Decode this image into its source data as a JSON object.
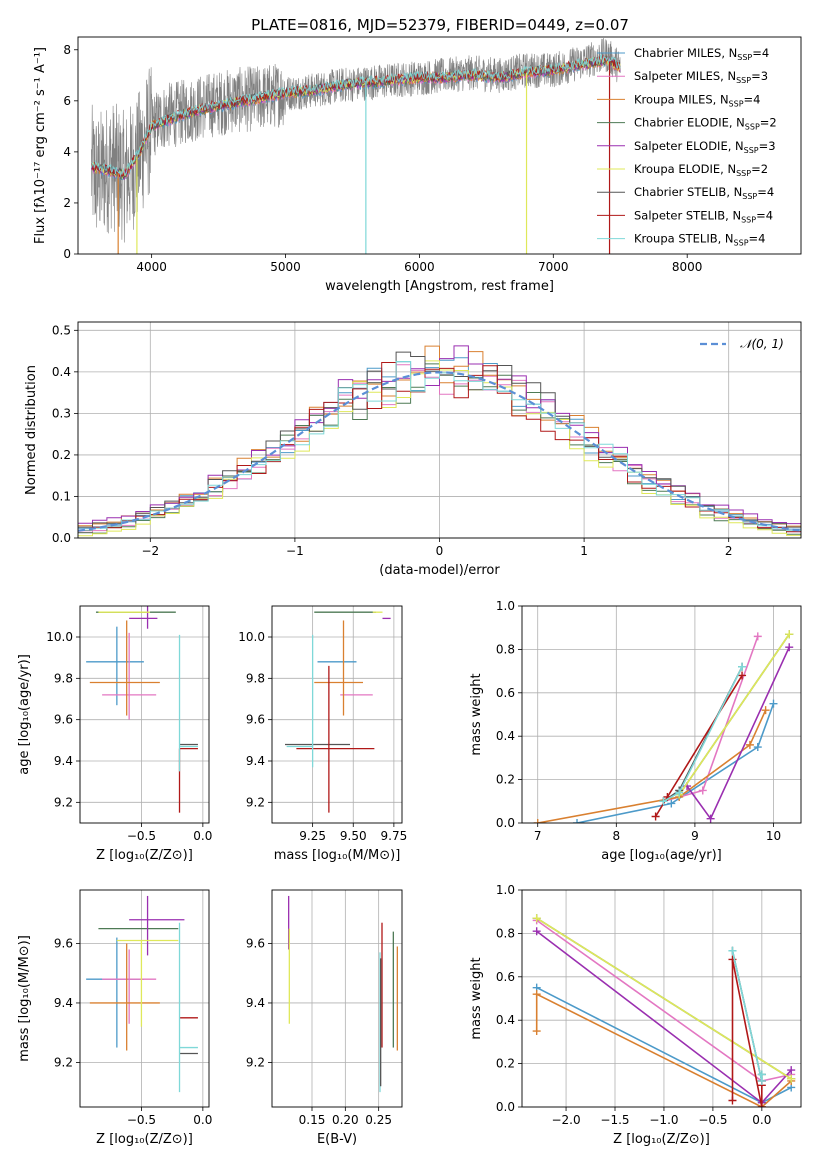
{
  "figure": {
    "title": "PLATE=0816, MJD=52379, FIBERID=0449, z=0.07"
  },
  "series_colors": {
    "Chabrier MILES": "#4c9ac9",
    "Salpeter MILES": "#e377c2",
    "Kroupa MILES": "#d98030",
    "Chabrier ELODIE": "#4e7a55",
    "Salpeter ELODIE": "#9a2fb0",
    "Kroupa ELODIE": "#dfe85a",
    "Chabrier STELIB": "#555555",
    "Salpeter STELIB": "#b01818",
    "Kroupa STELIB": "#7fd8d8",
    "data": "#808080",
    "normal": "#5b8fd6"
  },
  "chart_data": [
    {
      "id": "spectrum",
      "type": "line",
      "title": "PLATE=0816, MJD=52379, FIBERID=0449, z=0.07",
      "xlabel": "wavelength [Angstrom, rest frame]",
      "ylabel": "Flux [f_λ 10^-17 erg cm^-2 s^-1 A^-1]",
      "xlim": [
        3450,
        8850
      ],
      "ylim": [
        0,
        8.5
      ],
      "xticks": [
        4000,
        5000,
        6000,
        7000,
        8000
      ],
      "yticks": [
        0,
        2,
        4,
        6,
        8
      ],
      "legend": [
        "Chabrier MILES, N_SSP=4",
        "Salpeter MILES, N_SSP=3",
        "Kroupa MILES, N_SSP=4",
        "Chabrier ELODIE, N_SSP=2",
        "Salpeter ELODIE, N_SSP=3",
        "Kroupa ELODIE, N_SSP=2",
        "Chabrier STELIB, N_SSP=4",
        "Salpeter STELIB, N_SSP=4",
        "Kroupa STELIB, N_SSP=4"
      ],
      "legend_position": "right",
      "data_x": [
        3550,
        3600,
        3700,
        3800,
        3900,
        4000,
        4100,
        4200,
        4400,
        4600,
        4800,
        5000,
        5200,
        5400,
        5600,
        5800,
        6000,
        6200,
        6400,
        6600,
        6800,
        7000,
        7200,
        7400,
        7500
      ],
      "data_y": [
        3.3,
        3.0,
        3.5,
        3.0,
        3.8,
        5.0,
        5.4,
        5.5,
        5.8,
        6.0,
        6.1,
        6.3,
        6.4,
        6.6,
        6.7,
        6.8,
        6.9,
        7.0,
        7.1,
        7.0,
        7.2,
        7.2,
        7.5,
        7.8,
        7.3
      ],
      "model_x": [
        3550,
        3650,
        3800,
        3900,
        4000,
        4200,
        4400,
        4600,
        4800,
        5000,
        5200,
        5400,
        5600,
        5800,
        6000,
        6200,
        6400,
        6600,
        6800,
        7000,
        7200,
        7400,
        7500
      ],
      "model_y": [
        3.4,
        3.3,
        3.1,
        3.9,
        5.0,
        5.4,
        5.7,
        5.9,
        6.1,
        6.3,
        6.4,
        6.6,
        6.7,
        6.8,
        6.9,
        6.9,
        7.0,
        6.9,
        7.1,
        7.2,
        7.4,
        7.6,
        7.3
      ],
      "model_spikes": [
        {
          "x": 5600,
          "y": 0,
          "series": "Kroupa STELIB"
        },
        {
          "x": 6800,
          "y": 0,
          "series": "Kroupa ELODIE"
        },
        {
          "x": 7420,
          "y": 0,
          "series": "Salpeter STELIB"
        },
        {
          "x": 3750,
          "y": 0,
          "series": "Kroupa MILES"
        },
        {
          "x": 3890,
          "y": 0,
          "series": "Kroupa ELODIE"
        }
      ]
    },
    {
      "id": "residuals",
      "type": "line",
      "xlabel": "(data-model)/error",
      "ylabel": "Normed distribution",
      "xlim": [
        -2.5,
        2.5
      ],
      "ylim": [
        0,
        0.52
      ],
      "xticks": [
        -2,
        -1,
        0,
        1,
        2
      ],
      "yticks": [
        0.0,
        0.1,
        0.2,
        0.3,
        0.4,
        0.5
      ],
      "legend": [
        "N(0,1)"
      ],
      "legend_position": "top-right",
      "grid": true,
      "bin_width": 0.1,
      "histograms": [
        {
          "series": "Chabrier MILES",
          "offset": 0.004
        },
        {
          "series": "Salpeter MILES",
          "offset": -0.006
        },
        {
          "series": "Kroupa MILES",
          "offset": 0.01
        },
        {
          "series": "Chabrier ELODIE",
          "offset": -0.01
        },
        {
          "series": "Salpeter ELODIE",
          "offset": 0.015
        },
        {
          "series": "Kroupa ELODIE",
          "offset": -0.014
        },
        {
          "series": "Chabrier STELIB",
          "offset": 0.008
        },
        {
          "series": "Salpeter STELIB",
          "offset": -0.003
        },
        {
          "series": "Kroupa STELIB",
          "offset": 0.0
        }
      ]
    },
    {
      "id": "age_vs_Z",
      "type": "scatter",
      "xlabel": "Z [log10(Z/Z_sun)]",
      "ylabel": "age [log10(age/yr)]",
      "xlim": [
        -1.0,
        0.05
      ],
      "ylim": [
        9.1,
        10.15
      ],
      "xticks": [
        -0.5,
        0.0
      ],
      "xtick_labels": [
        "−0.5",
        "0.0"
      ],
      "extra_xticks": [
        -1.0
      ],
      "yticks": [
        9.2,
        9.4,
        9.6,
        9.8,
        10.0
      ],
      "grid": true,
      "points": [
        {
          "series": "Chabrier MILES",
          "x": -0.7,
          "y": 9.88,
          "xerr": [
            0.25,
            0.22
          ],
          "yerr": [
            0.21,
            0.17
          ]
        },
        {
          "series": "Salpeter MILES",
          "x": -0.6,
          "y": 9.72,
          "xerr": [
            0.22,
            0.22
          ],
          "yerr": [
            0.12,
            0.3
          ]
        },
        {
          "series": "Kroupa MILES",
          "x": -0.62,
          "y": 9.78,
          "xerr": [
            0.3,
            0.27
          ],
          "yerr": [
            0.16,
            0.3
          ]
        },
        {
          "series": "Chabrier ELODIE",
          "x": -0.62,
          "y": 10.12,
          "xerr": [
            0.25,
            0.4
          ],
          "yerr": [
            0.0,
            0.0
          ]
        },
        {
          "series": "Salpeter ELODIE",
          "x": -0.45,
          "y": 10.09,
          "xerr": [
            0.15,
            0.08
          ],
          "yerr": [
            0.05,
            0.2
          ]
        },
        {
          "series": "Kroupa ELODIE",
          "x": -0.63,
          "y": 10.12,
          "xerr": [
            0.22,
            0.2
          ],
          "yerr": [
            0.0,
            0.0
          ]
        },
        {
          "series": "Chabrier STELIB",
          "x": -0.19,
          "y": 9.48,
          "xerr": [
            0.0,
            0.15
          ],
          "yerr": [
            0.0,
            0.0
          ]
        },
        {
          "series": "Salpeter STELIB",
          "x": -0.19,
          "y": 9.46,
          "xerr": [
            0.0,
            0.15
          ],
          "yerr": [
            0.31,
            0.0
          ]
        },
        {
          "series": "Kroupa STELIB",
          "x": -0.19,
          "y": 9.47,
          "xerr": [
            0.0,
            0.15
          ],
          "yerr": [
            0.12,
            0.54
          ]
        }
      ]
    },
    {
      "id": "age_vs_mass",
      "type": "scatter",
      "xlabel": "mass [log10(M/M_sun)]",
      "ylabel": "",
      "xlim": [
        9.0,
        9.8
      ],
      "ylim": [
        9.1,
        10.15
      ],
      "xticks": [
        9.25,
        9.5,
        9.75
      ],
      "yticks": [
        9.2,
        9.4,
        9.6,
        9.8,
        10.0
      ],
      "grid": true,
      "points": [
        {
          "series": "Chabrier MILES",
          "x": 9.4,
          "y": 9.88,
          "xerr": [
            0.12,
            0.12
          ],
          "yerr": [
            0.0,
            0.0
          ]
        },
        {
          "series": "Salpeter MILES",
          "x": 9.52,
          "y": 9.72,
          "xerr": [
            0.1,
            0.1
          ],
          "yerr": [
            0.0,
            0.0
          ]
        },
        {
          "series": "Kroupa MILES",
          "x": 9.44,
          "y": 9.78,
          "xerr": [
            0.18,
            0.12
          ],
          "yerr": [
            0.16,
            0.3
          ]
        },
        {
          "series": "Chabrier ELODIE",
          "x": 9.44,
          "y": 10.12,
          "xerr": [
            0.18,
            0.2
          ],
          "yerr": [
            0.0,
            0.0
          ]
        },
        {
          "series": "Salpeter ELODIE",
          "x": 9.68,
          "y": 10.09,
          "xerr": [
            0.0,
            0.05
          ],
          "yerr": [
            0.0,
            0.0
          ]
        },
        {
          "series": "Kroupa ELODIE",
          "x": 9.62,
          "y": 10.12,
          "xerr": [
            0.0,
            0.06
          ],
          "yerr": [
            0.0,
            0.0
          ]
        },
        {
          "series": "Chabrier STELIB",
          "x": 9.28,
          "y": 9.48,
          "xerr": [
            0.2,
            0.2
          ],
          "yerr": [
            0.0,
            0.0
          ]
        },
        {
          "series": "Salpeter STELIB",
          "x": 9.35,
          "y": 9.46,
          "xerr": [
            0.2,
            0.28
          ],
          "yerr": [
            0.31,
            0.4
          ]
        },
        {
          "series": "Kroupa STELIB",
          "x": 9.25,
          "y": 9.47,
          "xerr": [
            0.16,
            0.0
          ],
          "yerr": [
            0.1,
            0.54
          ]
        }
      ]
    },
    {
      "id": "massweight_vs_age",
      "type": "line",
      "xlabel": "age [log10(age/yr)]",
      "ylabel": "mass weight",
      "xlim": [
        6.8,
        10.35
      ],
      "ylim": [
        0,
        1.0
      ],
      "xticks": [
        7,
        8,
        9,
        10
      ],
      "yticks": [
        0.0,
        0.2,
        0.4,
        0.6,
        0.8,
        1.0
      ],
      "grid": true,
      "series": [
        {
          "series": "Chabrier MILES",
          "x": [
            7.5,
            8.7,
            9.8,
            10.0
          ],
          "y": [
            0.0,
            0.09,
            0.35,
            0.55
          ]
        },
        {
          "series": "Salpeter MILES",
          "x": [
            8.6,
            9.1,
            9.8
          ],
          "y": [
            0.1,
            0.15,
            0.86
          ]
        },
        {
          "series": "Kroupa MILES",
          "x": [
            7.0,
            8.8,
            9.7,
            9.9
          ],
          "y": [
            0.0,
            0.12,
            0.36,
            0.52
          ]
        },
        {
          "series": "Chabrier ELODIE",
          "x": [
            8.8,
            10.2
          ],
          "y": [
            0.13,
            0.87
          ]
        },
        {
          "series": "Salpeter ELODIE",
          "x": [
            8.9,
            9.2,
            10.2
          ],
          "y": [
            0.17,
            0.02,
            0.81
          ]
        },
        {
          "series": "Kroupa ELODIE",
          "x": [
            8.8,
            10.2
          ],
          "y": [
            0.13,
            0.87
          ]
        },
        {
          "series": "Chabrier STELIB",
          "x": [
            8.6,
            8.8,
            9.6
          ],
          "y": [
            0.1,
            0.15,
            0.72
          ]
        },
        {
          "series": "Salpeter STELIB",
          "x": [
            8.5,
            8.65,
            9.6
          ],
          "y": [
            0.03,
            0.12,
            0.68
          ]
        },
        {
          "series": "Kroupa STELIB",
          "x": [
            8.6,
            8.8,
            9.6
          ],
          "y": [
            0.1,
            0.14,
            0.72
          ]
        }
      ]
    },
    {
      "id": "mass_vs_Z",
      "type": "scatter",
      "xlabel": "Z [log10(Z/Z_sun)]",
      "ylabel": "mass [log10(M/M_sun)]",
      "xlim": [
        -1.0,
        0.05
      ],
      "ylim": [
        9.05,
        9.78
      ],
      "xticks": [
        -0.5,
        0.0
      ],
      "yticks": [
        9.2,
        9.4,
        9.6
      ],
      "grid": true,
      "points": [
        {
          "series": "Chabrier MILES",
          "x": -0.7,
          "y": 9.48,
          "xerr": [
            0.25,
            0.22
          ],
          "yerr": [
            0.23,
            0.14
          ]
        },
        {
          "series": "Salpeter MILES",
          "x": -0.6,
          "y": 9.48,
          "xerr": [
            0.22,
            0.22
          ],
          "yerr": [
            0.15,
            0.1
          ]
        },
        {
          "series": "Kroupa MILES",
          "x": -0.62,
          "y": 9.4,
          "xerr": [
            0.3,
            0.27
          ],
          "yerr": [
            0.16,
            0.2
          ]
        },
        {
          "series": "Chabrier ELODIE",
          "x": -0.55,
          "y": 9.65,
          "xerr": [
            0.3,
            0.35
          ],
          "yerr": [
            0.0,
            0.0
          ]
        },
        {
          "series": "Salpeter ELODIE",
          "x": -0.45,
          "y": 9.68,
          "xerr": [
            0.15,
            0.3
          ],
          "yerr": [
            0.12,
            0.08
          ]
        },
        {
          "series": "Kroupa ELODIE",
          "x": -0.5,
          "y": 9.61,
          "xerr": [
            0.2,
            0.3
          ],
          "yerr": [
            0.29,
            0.0
          ]
        },
        {
          "series": "Chabrier STELIB",
          "x": -0.19,
          "y": 9.23,
          "xerr": [
            0.0,
            0.15
          ],
          "yerr": [
            0.0,
            0.0
          ]
        },
        {
          "series": "Salpeter STELIB",
          "x": -0.19,
          "y": 9.35,
          "xerr": [
            0.0,
            0.15
          ],
          "yerr": [
            0.0,
            0.0
          ]
        },
        {
          "series": "Kroupa STELIB",
          "x": -0.19,
          "y": 9.25,
          "xerr": [
            0.0,
            0.15
          ],
          "yerr": [
            0.15,
            0.42
          ]
        }
      ]
    },
    {
      "id": "mass_vs_ebv",
      "type": "scatter",
      "xlabel": "E(B-V)",
      "ylabel": "",
      "xlim": [
        0.09,
        0.285
      ],
      "ylim": [
        9.05,
        9.78
      ],
      "xticks": [
        0.15,
        0.2,
        0.25
      ],
      "xtick_labels": [
        "0.15",
        "0.20",
        "0.25"
      ],
      "yticks": [
        9.2,
        9.4,
        9.6
      ],
      "grid": true,
      "points": [
        {
          "series": "Salpeter ELODIE",
          "x": 0.115,
          "y": 9.68,
          "xerr": [
            0.0,
            0.0
          ],
          "yerr": [
            0.1,
            0.08
          ]
        },
        {
          "series": "Kroupa ELODIE",
          "x": 0.116,
          "y": 9.5,
          "xerr": [
            0.0,
            0.0
          ],
          "yerr": [
            0.17,
            0.15
          ]
        },
        {
          "series": "Kroupa STELIB",
          "x": 0.252,
          "y": 9.3,
          "xerr": [
            0.0,
            0.0
          ],
          "yerr": [
            0.2,
            0.27
          ]
        },
        {
          "series": "Salpeter STELIB",
          "x": 0.255,
          "y": 9.4,
          "xerr": [
            0.0,
            0.0
          ],
          "yerr": [
            0.15,
            0.27
          ]
        },
        {
          "series": "Chabrier STELIB",
          "x": 0.253,
          "y": 9.35,
          "xerr": [
            0.0,
            0.0
          ],
          "yerr": [
            0.23,
            0.2
          ]
        },
        {
          "series": "Chabrier ELODIE",
          "x": 0.272,
          "y": 9.45,
          "xerr": [
            0.0,
            0.0
          ],
          "yerr": [
            0.2,
            0.19
          ]
        },
        {
          "series": "Kroupa MILES",
          "x": 0.278,
          "y": 9.42,
          "xerr": [
            0.0,
            0.0
          ],
          "yerr": [
            0.18,
            0.17
          ]
        }
      ]
    },
    {
      "id": "massweight_vs_Z",
      "type": "line",
      "xlabel": "Z [log10(Z/Z_sun)]",
      "ylabel": "mass weight",
      "xlim": [
        -2.45,
        0.4
      ],
      "ylim": [
        0,
        1.0
      ],
      "xticks": [
        -2.0,
        -1.5,
        -1.0,
        -0.5,
        0.0
      ],
      "xtick_labels": [
        "−2.0",
        "−1.5",
        "−1.0",
        "−0.5",
        "0.0"
      ],
      "yticks": [
        0.0,
        0.2,
        0.4,
        0.6,
        0.8,
        1.0
      ],
      "grid": true,
      "series": [
        {
          "series": "Chabrier MILES",
          "x": [
            -2.3,
            0.0,
            0.3
          ],
          "y": [
            0.55,
            0.02,
            0.09
          ]
        },
        {
          "series": "Salpeter MILES",
          "x": [
            -2.3,
            0.0,
            0.3
          ],
          "y": [
            0.86,
            0.12,
            0.15
          ]
        },
        {
          "series": "Kroupa MILES",
          "x": [
            -2.3,
            -2.3,
            0.0,
            0.3
          ],
          "y": [
            0.35,
            0.52,
            0.0,
            0.12
          ]
        },
        {
          "series": "Chabrier ELODIE",
          "x": [
            -2.3,
            0.3
          ],
          "y": [
            0.87,
            0.13
          ]
        },
        {
          "series": "Salpeter ELODIE",
          "x": [
            -2.3,
            0.0,
            0.3
          ],
          "y": [
            0.81,
            0.02,
            0.17
          ]
        },
        {
          "series": "Kroupa ELODIE",
          "x": [
            -2.3,
            0.3
          ],
          "y": [
            0.87,
            0.13
          ]
        },
        {
          "series": "Chabrier STELIB",
          "x": [
            -0.3,
            0.0,
            0.0
          ],
          "y": [
            0.72,
            0.12,
            0.15
          ]
        },
        {
          "series": "Salpeter STELIB",
          "x": [
            -0.3,
            -0.3,
            0.0,
            0.0
          ],
          "y": [
            0.03,
            0.68,
            0.0,
            0.1
          ]
        },
        {
          "series": "Kroupa STELIB",
          "x": [
            -0.3,
            0.0,
            0.0
          ],
          "y": [
            0.72,
            0.12,
            0.15
          ]
        }
      ]
    }
  ]
}
